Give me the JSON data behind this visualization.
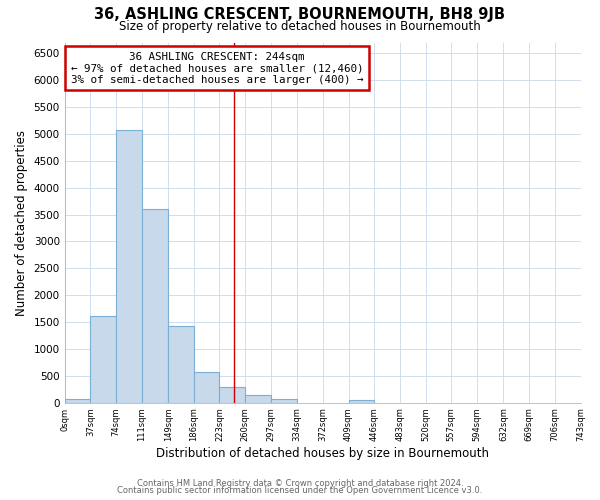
{
  "title": "36, ASHLING CRESCENT, BOURNEMOUTH, BH8 9JB",
  "subtitle": "Size of property relative to detached houses in Bournemouth",
  "xlabel": "Distribution of detached houses by size in Bournemouth",
  "ylabel": "Number of detached properties",
  "bin_edges": [
    0,
    37,
    74,
    111,
    149,
    186,
    223,
    260,
    297,
    334,
    372,
    409,
    446,
    483,
    520,
    557,
    594,
    632,
    669,
    706,
    743
  ],
  "bar_heights": [
    60,
    1620,
    5080,
    3600,
    1420,
    580,
    300,
    140,
    70,
    0,
    0,
    50,
    0,
    0,
    0,
    0,
    0,
    0,
    0,
    0
  ],
  "bar_color": "#c8d9eb",
  "bar_edge_color": "#7bafd4",
  "vertical_line_x": 244,
  "vertical_line_color": "#cc0000",
  "annotation_title": "36 ASHLING CRESCENT: 244sqm",
  "annotation_line1": "← 97% of detached houses are smaller (12,460)",
  "annotation_line2": "3% of semi-detached houses are larger (400) →",
  "annotation_box_color": "#cc0000",
  "ylim": [
    0,
    6700
  ],
  "yticks": [
    0,
    500,
    1000,
    1500,
    2000,
    2500,
    3000,
    3500,
    4000,
    4500,
    5000,
    5500,
    6000,
    6500
  ],
  "footer_line1": "Contains HM Land Registry data © Crown copyright and database right 2024.",
  "footer_line2": "Contains public sector information licensed under the Open Government Licence v3.0.",
  "background_color": "#ffffff",
  "grid_color": "#c8d8ea"
}
